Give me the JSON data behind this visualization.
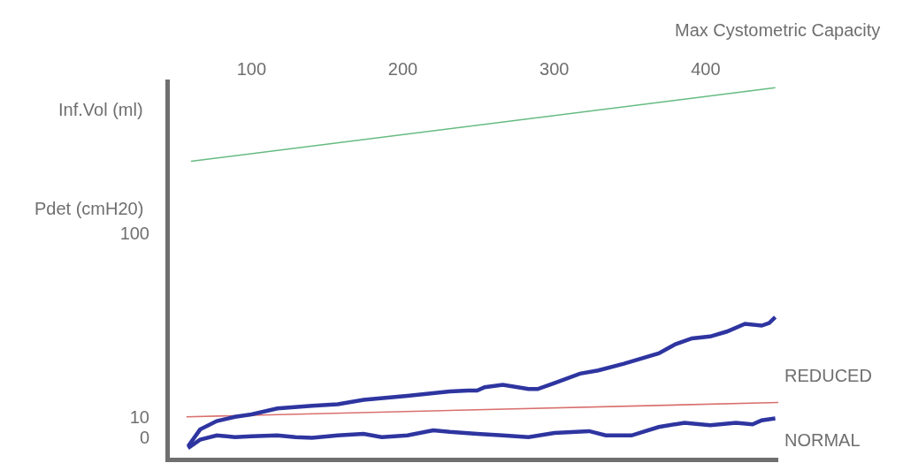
{
  "chart_data": {
    "type": "line",
    "xlabel": "Inf.Vol (ml)",
    "ylabel": "Pdet (cmH20)",
    "xlim": [
      46,
      448
    ],
    "xticks": [
      100,
      200,
      300,
      400
    ],
    "ylim": [
      -10,
      175
    ],
    "yticks": [
      0,
      10,
      100
    ],
    "legend": false,
    "marker": "none",
    "line_style": "solid",
    "annotations": [
      "Max Cystometric Capacity"
    ],
    "series": [
      {
        "color": "#66bb80",
        "x": [
          60,
          446
        ],
        "values": [
          135,
          171
        ]
      },
      {
        "color": "#d9706e",
        "x": [
          57,
          448
        ],
        "values": [
          10,
          17
        ]
      },
      {
        "name": "REDUCED",
        "color": "#2e35a0",
        "x": [
          58,
          66,
          77,
          89,
          100,
          117,
          140,
          157,
          174,
          203,
          231,
          243,
          249,
          254,
          266,
          283,
          289,
          300,
          317,
          329,
          346,
          369,
          380,
          391,
          403,
          414,
          426,
          437,
          442,
          446
        ],
        "values": [
          -4.5,
          3.8,
          7.9,
          10,
          11.2,
          14.1,
          15.4,
          16.2,
          18.3,
          20.3,
          22.4,
          22.8,
          22.8,
          24.5,
          25.7,
          23.6,
          23.6,
          26.5,
          31.1,
          32.7,
          36,
          41,
          45.5,
          48.4,
          49.3,
          51.7,
          55.5,
          54.6,
          55.9,
          58.8
        ]
      },
      {
        "name": "NORMAL",
        "color": "#2e35a0",
        "x": [
          58,
          66,
          77,
          89,
          100,
          117,
          129,
          140,
          157,
          174,
          186,
          203,
          220,
          231,
          249,
          266,
          283,
          300,
          323,
          334,
          351,
          369,
          386,
          403,
          420,
          431,
          437,
          446
        ],
        "values": [
          -5.3,
          -1.2,
          0.9,
          0.1,
          0.5,
          0.9,
          0.1,
          -0.3,
          0.9,
          1.7,
          0.1,
          0.9,
          3.4,
          2.6,
          1.7,
          0.9,
          0.1,
          2.1,
          3,
          0.9,
          0.9,
          5,
          7.1,
          5.9,
          7.1,
          6.3,
          8.3,
          9.2
        ]
      }
    ]
  }
}
